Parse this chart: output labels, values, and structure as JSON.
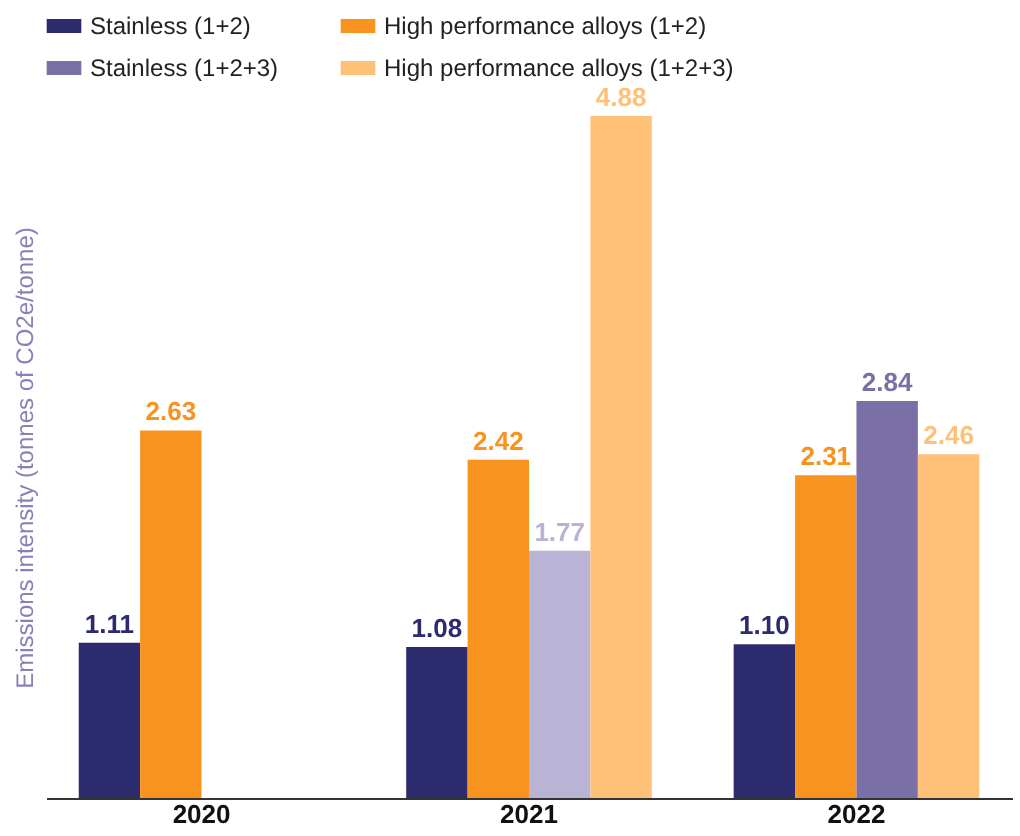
{
  "chart_data": {
    "type": "bar",
    "ylabel": "Emissions intensity (tonnes of CO2e/tonne)",
    "categories": [
      "2020",
      "2021",
      "2022"
    ],
    "series": [
      {
        "name": "Stainless (1+2)",
        "color": "#2b2b6e",
        "values": [
          1.11,
          1.08,
          1.1
        ],
        "value_labels": [
          "1.11",
          "1.08",
          "1.10"
        ]
      },
      {
        "name": "High performance alloys (1+2)",
        "color": "#f7931e",
        "values": [
          2.63,
          2.42,
          2.31
        ],
        "value_labels": [
          "2.63",
          "2.42",
          "2.31"
        ]
      },
      {
        "name": "Stainless (1+2+3)",
        "color": "#7a6fa6",
        "colors": [
          null,
          "#b9b4d6",
          "#7a6fa6"
        ],
        "values": [
          null,
          1.77,
          2.84
        ],
        "value_labels": [
          null,
          "1.77",
          "2.84"
        ]
      },
      {
        "name": "High performance alloys (1+2+3)",
        "color": "#ffc078",
        "values": [
          null,
          4.88,
          2.46
        ],
        "value_labels": [
          null,
          "4.88",
          "2.46"
        ]
      }
    ],
    "legend": "top"
  }
}
